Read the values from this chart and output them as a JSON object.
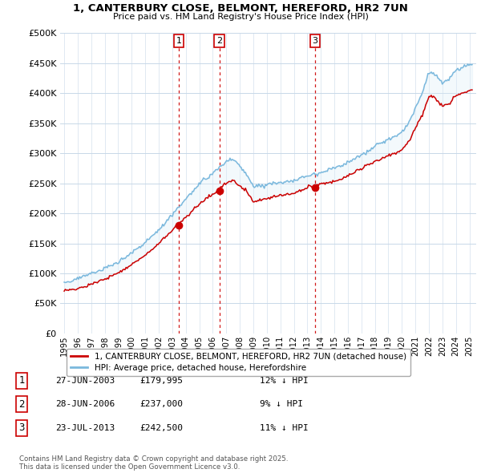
{
  "title1": "1, CANTERBURY CLOSE, BELMONT, HEREFORD, HR2 7UN",
  "title2": "Price paid vs. HM Land Registry's House Price Index (HPI)",
  "legend_label1": "1, CANTERBURY CLOSE, BELMONT, HEREFORD, HR2 7UN (detached house)",
  "legend_label2": "HPI: Average price, detached house, Herefordshire",
  "transaction_labels": [
    "1",
    "2",
    "3"
  ],
  "transaction_dates": [
    "27-JUN-2003",
    "28-JUN-2006",
    "23-JUL-2013"
  ],
  "transaction_prices": [
    "£179,995",
    "£237,000",
    "£242,500"
  ],
  "transaction_notes": [
    "12% ↓ HPI",
    "9% ↓ HPI",
    "11% ↓ HPI"
  ],
  "footnote": "Contains HM Land Registry data © Crown copyright and database right 2025.\nThis data is licensed under the Open Government Licence v3.0.",
  "hpi_color": "#7ab8dd",
  "price_color": "#cc0000",
  "vline_color": "#cc0000",
  "fill_color": "#deeef8",
  "background_color": "#ffffff",
  "ylim": [
    0,
    500000
  ],
  "yticks": [
    0,
    50000,
    100000,
    150000,
    200000,
    250000,
    300000,
    350000,
    400000,
    450000,
    500000
  ],
  "prop_years": [
    2003.49,
    2006.49,
    2013.56
  ],
  "prop_prices": [
    179995,
    237000,
    242500
  ],
  "hpi_anchors_x": [
    1995,
    1996,
    1997,
    1998,
    1999,
    2000,
    2001,
    2002,
    2003,
    2004,
    2005,
    2006,
    2007,
    2007.5,
    2008.5,
    2009,
    2010,
    2011,
    2012,
    2013,
    2014,
    2015,
    2016,
    2017,
    2018,
    2019,
    2020,
    2020.5,
    2021,
    2021.5,
    2022,
    2022.5,
    2023,
    2023.5,
    2024,
    2025
  ],
  "hpi_anchors_y": [
    85000,
    92000,
    100000,
    110000,
    122000,
    136000,
    153000,
    175000,
    202000,
    228000,
    252000,
    271000,
    290000,
    295000,
    270000,
    250000,
    255000,
    260000,
    262000,
    272000,
    278000,
    285000,
    295000,
    308000,
    322000,
    335000,
    345000,
    360000,
    385000,
    410000,
    445000,
    440000,
    425000,
    430000,
    445000,
    455000
  ],
  "noise_seed": 12
}
